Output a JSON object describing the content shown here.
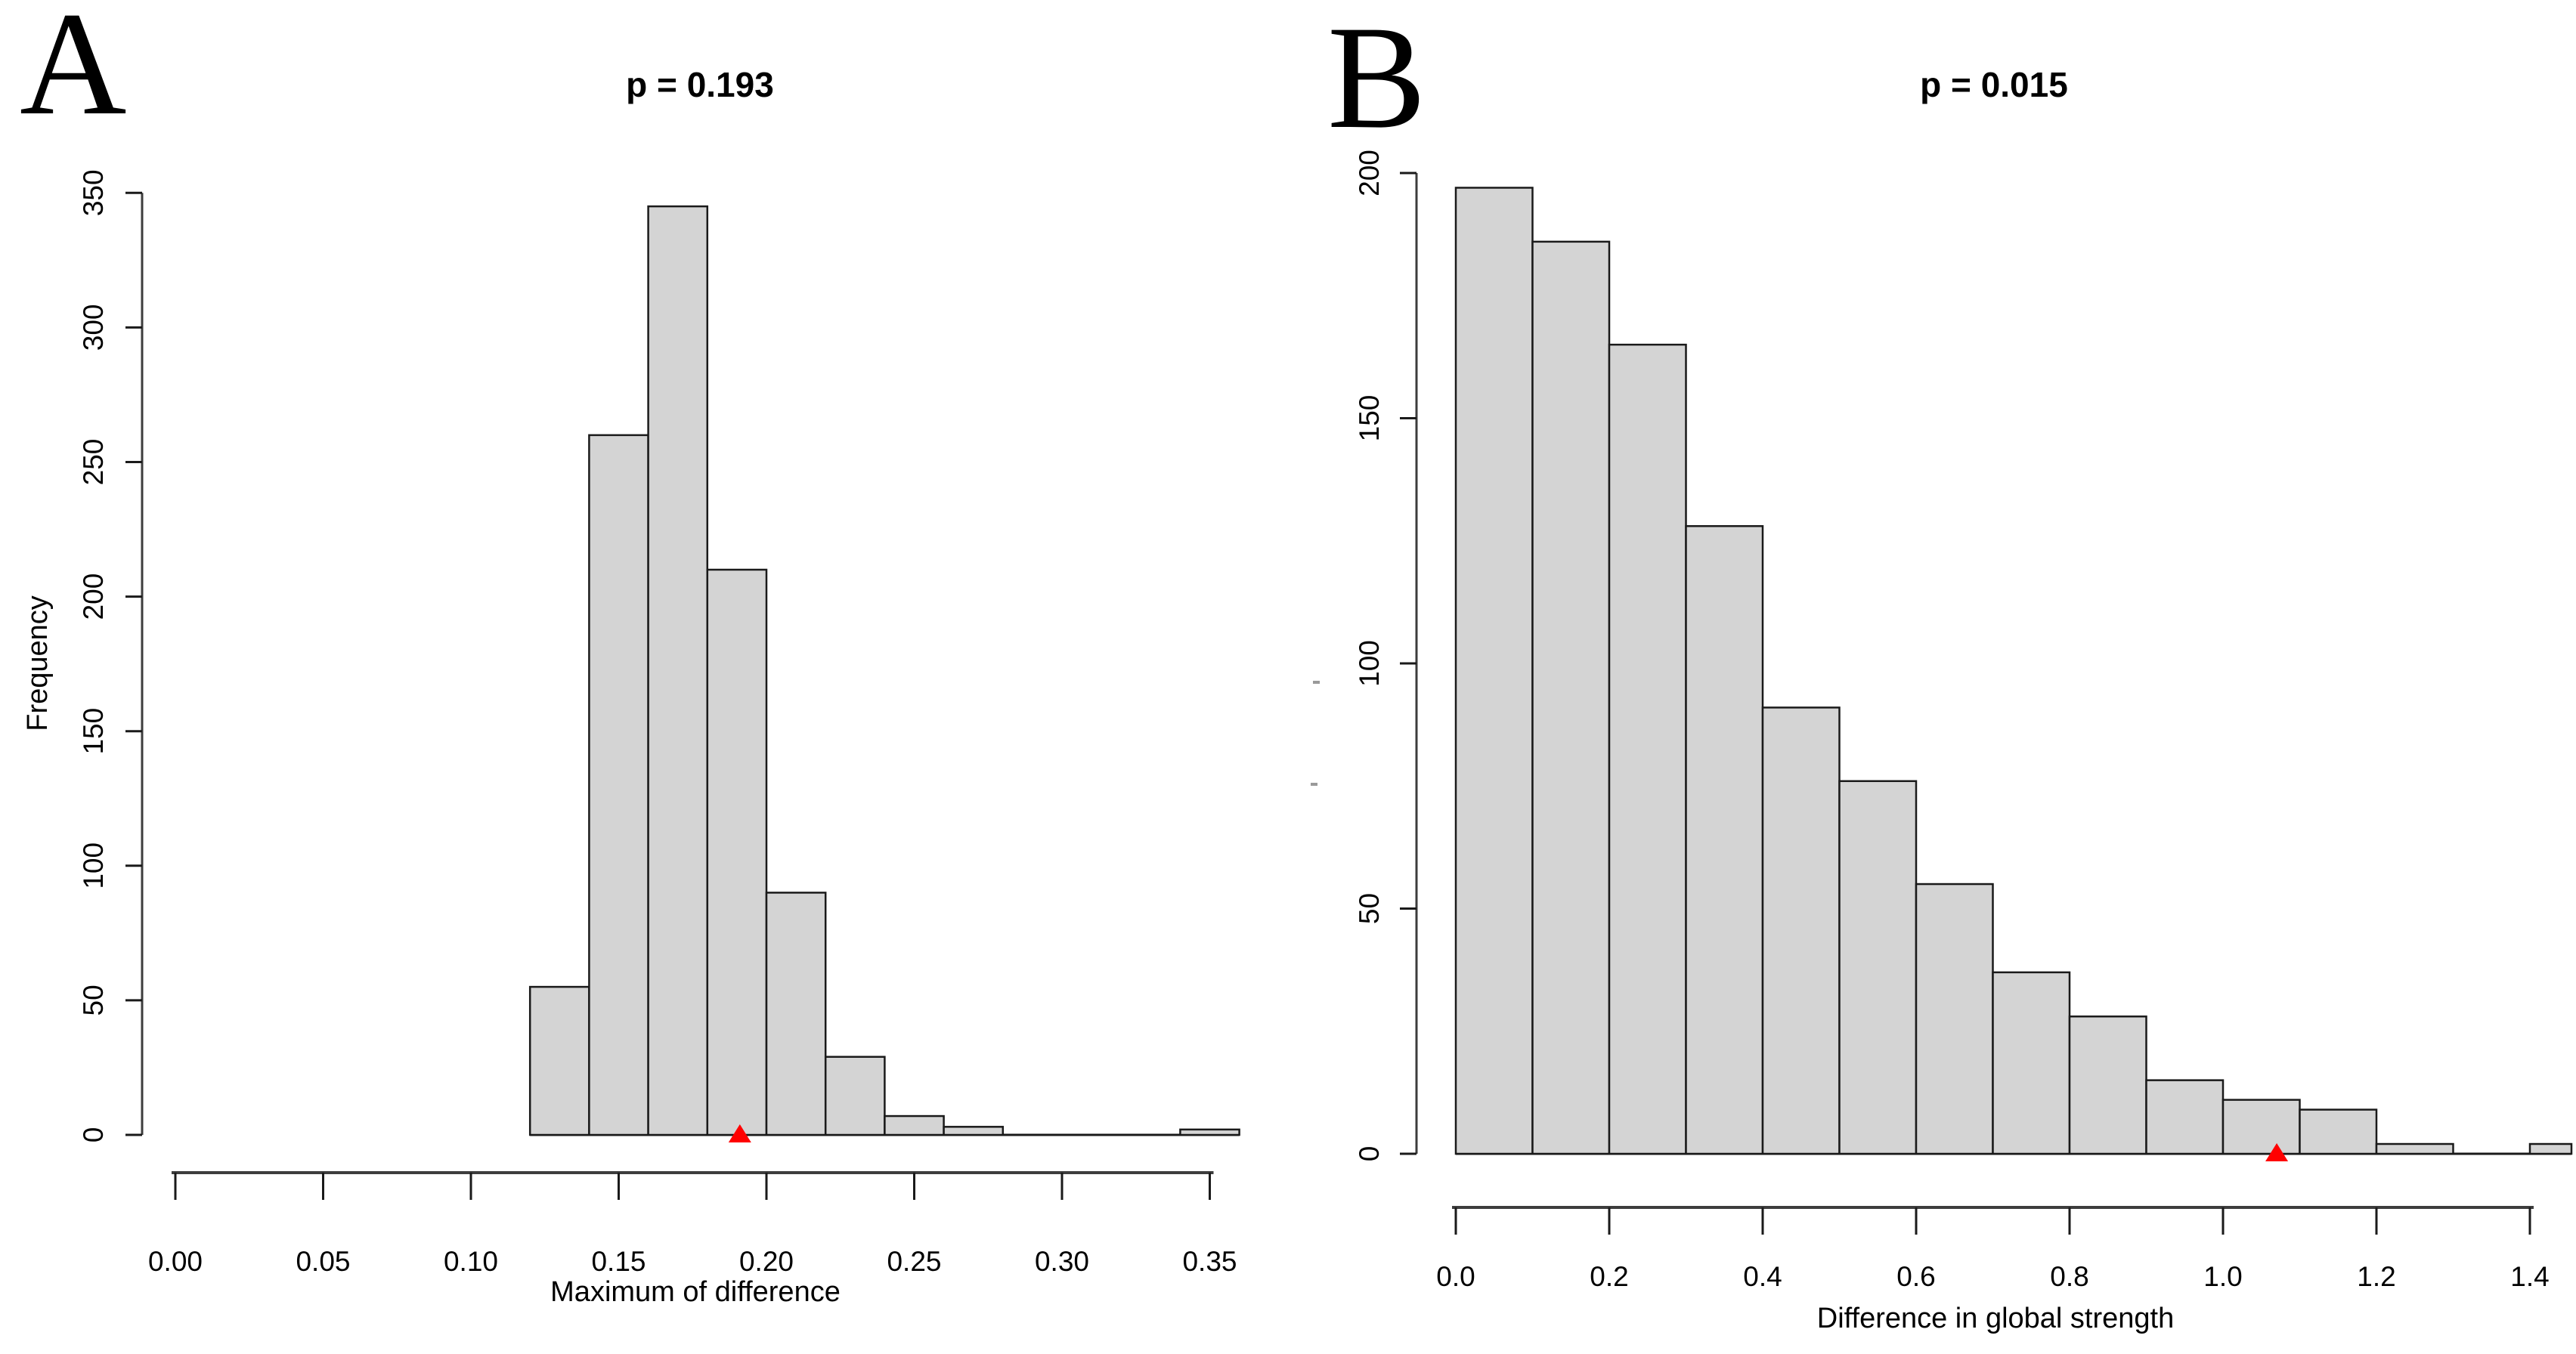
{
  "figure": {
    "background": "#ffffff",
    "bar_fill": "#d4d4d4",
    "bar_stroke": "#1a1a1a",
    "axis_color": "#3d3d3d",
    "tick_color": "#1a1a1a",
    "marker_color": "#ff0000",
    "artifact_color": "#9a9a9a"
  },
  "chart_data": [
    {
      "type": "bar",
      "subtype": "histogram",
      "panel_label": "A",
      "title": "p = 0.193",
      "xlabel": "Maximum of difference",
      "ylabel": "Frequency",
      "bin_start": 0.12,
      "bin_width": 0.02,
      "counts": [
        55,
        260,
        345,
        210,
        90,
        29,
        7,
        3,
        0,
        0,
        0,
        2
      ],
      "marker_x": 0.191,
      "marker_shape": "red-triangle-up",
      "xlim": [
        0,
        0.36
      ],
      "ylim": [
        0,
        350
      ],
      "x_ticks": {
        "values": [
          0,
          0.05,
          0.1,
          0.15,
          0.2,
          0.25,
          0.3,
          0.35
        ],
        "labels": [
          "0.00",
          "0.05",
          "0.10",
          "0.15",
          "0.20",
          "0.25",
          "0.30",
          "0.35"
        ]
      },
      "y_ticks": {
        "values": [
          0,
          50,
          100,
          150,
          200,
          250,
          300,
          350
        ],
        "labels": [
          "0",
          "50",
          "100",
          "150",
          "200",
          "250",
          "300",
          "350"
        ]
      },
      "grid": false,
      "legend": null
    },
    {
      "type": "bar",
      "subtype": "histogram",
      "panel_label": "B",
      "title": "p = 0.015",
      "xlabel": "Difference in global strength",
      "ylabel": "",
      "bin_start": 0.0,
      "bin_width": 0.1,
      "counts": [
        197,
        186,
        165,
        128,
        91,
        76,
        55,
        37,
        28,
        15,
        11,
        9,
        2,
        0,
        2
      ],
      "marker_x": 1.07,
      "marker_shape": "red-triangle-up",
      "xlim": [
        0,
        1.45
      ],
      "ylim": [
        0,
        200
      ],
      "x_ticks": {
        "values": [
          0,
          0.2,
          0.4,
          0.6,
          0.8,
          1.0,
          1.2,
          1.4
        ],
        "labels": [
          "0.0",
          "0.2",
          "0.4",
          "0.6",
          "0.8",
          "1.0",
          "1.2",
          "1.4"
        ]
      },
      "y_ticks": {
        "values": [
          0,
          50,
          100,
          150,
          200
        ],
        "labels": [
          "0",
          "50",
          "100",
          "150",
          "200"
        ]
      },
      "grid": false,
      "legend": null
    }
  ]
}
